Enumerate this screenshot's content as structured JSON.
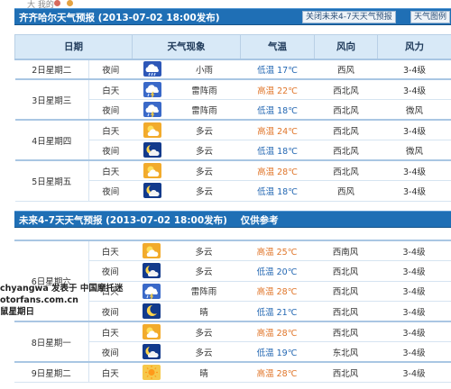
{
  "top_faint_text": "大 我的",
  "colors": {
    "bar": "#1f6fb5",
    "header": "#d8e9f7",
    "high_temp": "#e0762a",
    "low_temp": "#2468b3"
  },
  "section1": {
    "title": "齐齐哈尔天气预报 (2013-07-02  18:00发布)",
    "btn_close": "关闭未来4-7天天气预报",
    "btn_legend": "天气图例"
  },
  "headers": {
    "date": "日期",
    "weather": "天气现象",
    "temp": "气温",
    "wind_dir": "风向",
    "wind_force": "风力"
  },
  "rows1": [
    {
      "date": "2日星期二",
      "period": "夜间",
      "icon": "rain-icon",
      "weather": "小雨",
      "temp_label": "低温",
      "temp": "17℃",
      "dir": "西风",
      "force": "3-4级"
    },
    {
      "date": "3日星期三",
      "period": "白天",
      "icon": "thunderstorm-icon",
      "weather": "雷阵雨",
      "temp_label": "高温",
      "temp": "22℃",
      "dir": "西北风",
      "force": "3-4级"
    },
    {
      "date": "",
      "period": "夜间",
      "icon": "thunderstorm-icon",
      "weather": "雷阵雨",
      "temp_label": "低温",
      "temp": "18℃",
      "dir": "西北风",
      "force": "微风"
    },
    {
      "date": "4日星期四",
      "period": "白天",
      "icon": "partly-cloudy-icon",
      "weather": "多云",
      "temp_label": "高温",
      "temp": "24℃",
      "dir": "西北风",
      "force": "3-4级"
    },
    {
      "date": "",
      "period": "夜间",
      "icon": "cloudy-night-icon",
      "weather": "多云",
      "temp_label": "低温",
      "temp": "18℃",
      "dir": "西北风",
      "force": "微风"
    },
    {
      "date": "5日星期五",
      "period": "白天",
      "icon": "partly-cloudy-icon",
      "weather": "多云",
      "temp_label": "高温",
      "temp": "28℃",
      "dir": "西北风",
      "force": "3-4级"
    },
    {
      "date": "",
      "period": "夜间",
      "icon": "cloudy-night-icon",
      "weather": "多云",
      "temp_label": "低温",
      "temp": "18℃",
      "dir": "西风",
      "force": "3-4级"
    }
  ],
  "section2": {
    "title": "未来4-7天天气预报 (2013-07-02 18:00发布)",
    "note": "仅供参考"
  },
  "rows2": [
    {
      "date": "6日星期六",
      "period": "白天",
      "icon": "partly-cloudy-icon",
      "weather": "多云",
      "temp_label": "高温",
      "temp": "25℃",
      "dir": "西南风",
      "force": "3-4级"
    },
    {
      "date": "",
      "period": "夜间",
      "icon": "cloudy-night-icon",
      "weather": "多云",
      "temp_label": "低温",
      "temp": "20℃",
      "dir": "西北风",
      "force": "3-4级"
    },
    {
      "date": "",
      "period": "白天",
      "icon": "thunderstorm-icon",
      "weather": "雷阵雨",
      "temp_label": "高温",
      "temp": "28℃",
      "dir": "西北风",
      "force": "3-4级"
    },
    {
      "date": "",
      "period": "夜间",
      "icon": "clear-night-icon",
      "weather": "晴",
      "temp_label": "低温",
      "temp": "21℃",
      "dir": "西北风",
      "force": "3-4级"
    },
    {
      "date": "8日星期一",
      "period": "白天",
      "icon": "partly-cloudy-icon",
      "weather": "多云",
      "temp_label": "高温",
      "temp": "28℃",
      "dir": "西北风",
      "force": "3-4级"
    },
    {
      "date": "",
      "period": "夜间",
      "icon": "cloudy-night-icon",
      "weather": "多云",
      "temp_label": "低温",
      "temp": "19℃",
      "dir": "东北风",
      "force": "3-4级"
    },
    {
      "date": "9日星期二",
      "period": "白天",
      "icon": "sunny-icon",
      "weather": "晴",
      "temp_label": "高温",
      "temp": "28℃",
      "dir": "西北风",
      "force": "3-4级"
    }
  ],
  "watermark": {
    "line1": "chyangwa  发表于  中国摩托迷",
    "line2": "otorfans.com.cn",
    "line3": "鼠星期日"
  }
}
